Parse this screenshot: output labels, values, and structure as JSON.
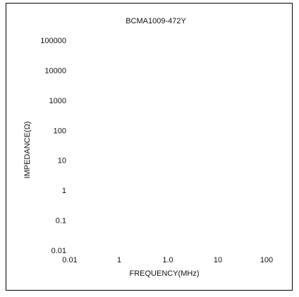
{
  "chart_data": {
    "type": "line",
    "title": "BCMA1009-472Y",
    "xlabel": "FREQUENCY(MHz)",
    "ylabel": "IMPEDANCE(Ω)",
    "x_scale": "log",
    "y_scale": "log",
    "x_ticks": [
      "0.01",
      "1",
      "1.0",
      "10",
      "100"
    ],
    "y_ticks": [
      "100000",
      "10000",
      "1000",
      "100",
      "10",
      "1",
      "0.1",
      "0.01"
    ],
    "series": [],
    "grid": false,
    "legend": "none",
    "colors": {
      "frame": "#000000",
      "text": "#111111"
    }
  }
}
